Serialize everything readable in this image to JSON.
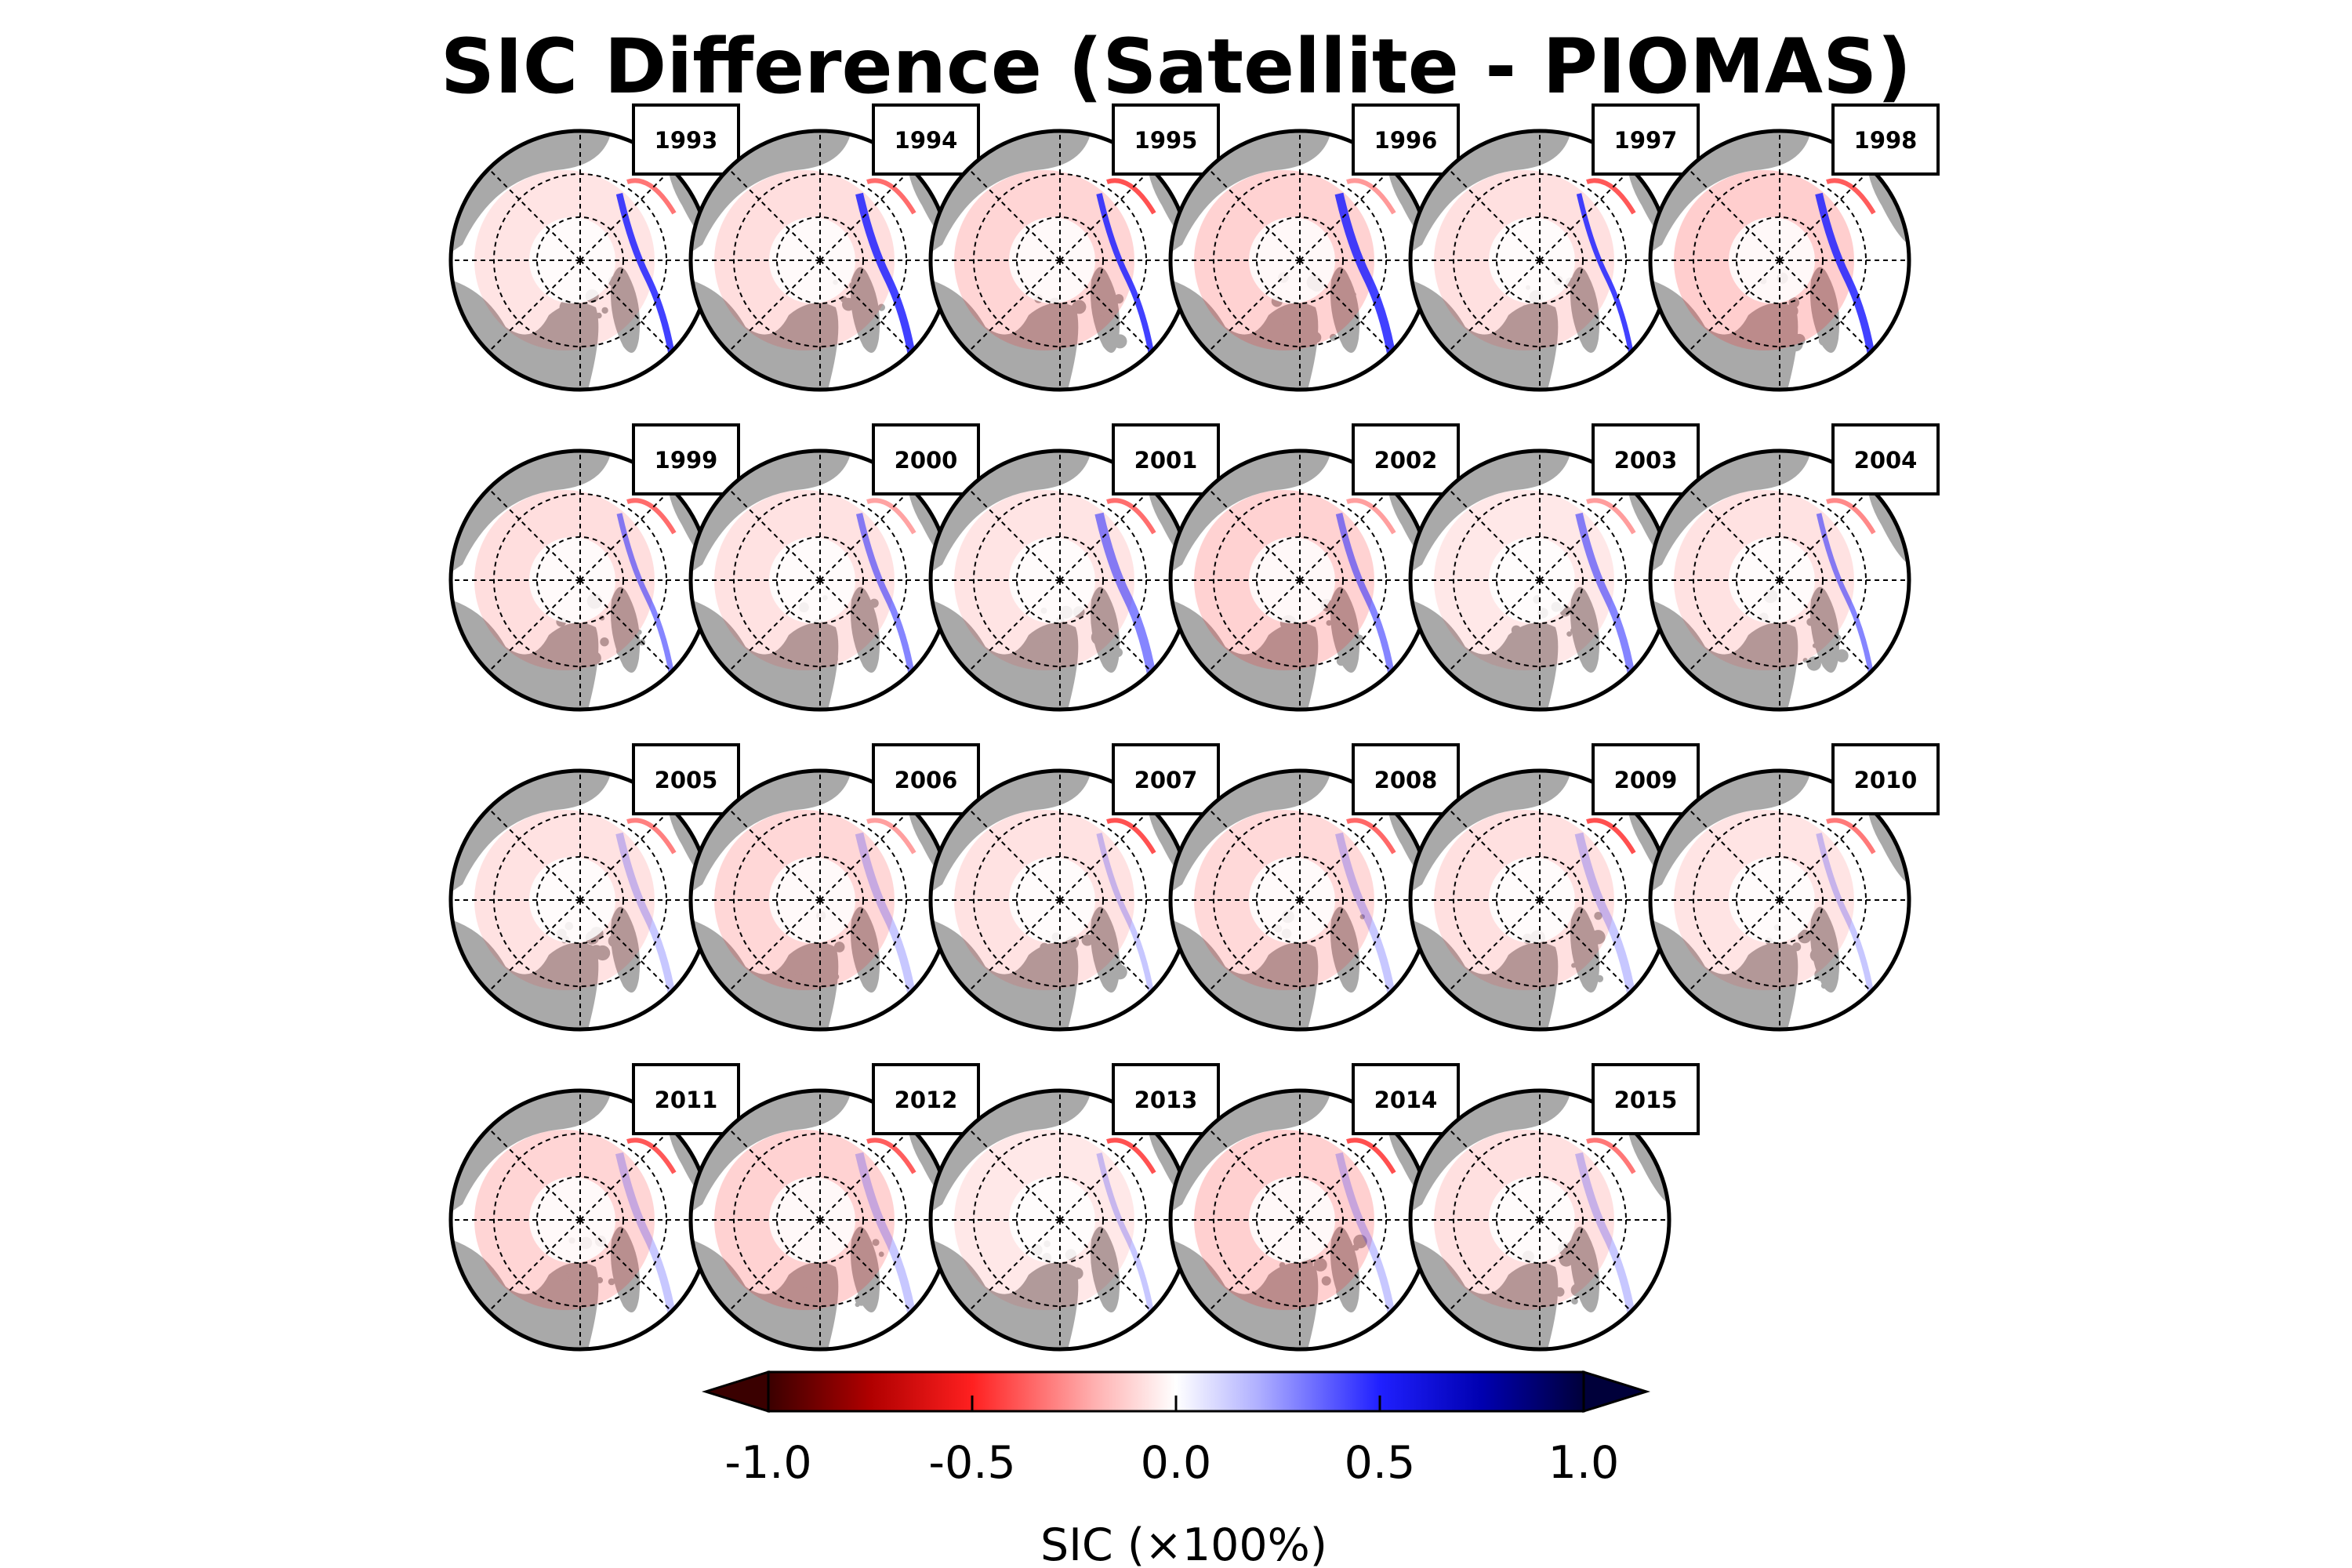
{
  "chart_data": {
    "type": "heatmap",
    "title": "SIC Difference (Satellite - PIOMAS)",
    "panel_kind": "north-polar-stereographic-map",
    "panels": [
      {
        "year": "1993"
      },
      {
        "year": "1994"
      },
      {
        "year": "1995"
      },
      {
        "year": "1996"
      },
      {
        "year": "1997"
      },
      {
        "year": "1998"
      },
      {
        "year": "1999"
      },
      {
        "year": "2000"
      },
      {
        "year": "2001"
      },
      {
        "year": "2002"
      },
      {
        "year": "2003"
      },
      {
        "year": "2004"
      },
      {
        "year": "2005"
      },
      {
        "year": "2006"
      },
      {
        "year": "2007"
      },
      {
        "year": "2008"
      },
      {
        "year": "2009"
      },
      {
        "year": "2010"
      },
      {
        "year": "2011"
      },
      {
        "year": "2012"
      },
      {
        "year": "2013"
      },
      {
        "year": "2014"
      },
      {
        "year": "2015"
      }
    ],
    "colorbar": {
      "label": "SIC (×100%)",
      "range": [
        -1.0,
        1.0
      ],
      "ticks": [
        "-1.0",
        "-0.5",
        "0.0",
        "0.5",
        "1.0"
      ],
      "tick_values": [
        -1.0,
        -0.5,
        0.0,
        0.5,
        1.0
      ],
      "extend": "both",
      "colormap": "blue-white-red (reversed)",
      "colors": {
        "min": "#3a0000",
        "neg_strong": "#b00000",
        "neg_mid": "#ff2020",
        "zero": "#ffffff",
        "pos_mid": "#2020ff",
        "pos_strong": "#0000b0",
        "max": "#00003a"
      }
    },
    "land_color": "#a9a9a9",
    "ocean_color": "#ffffff"
  }
}
